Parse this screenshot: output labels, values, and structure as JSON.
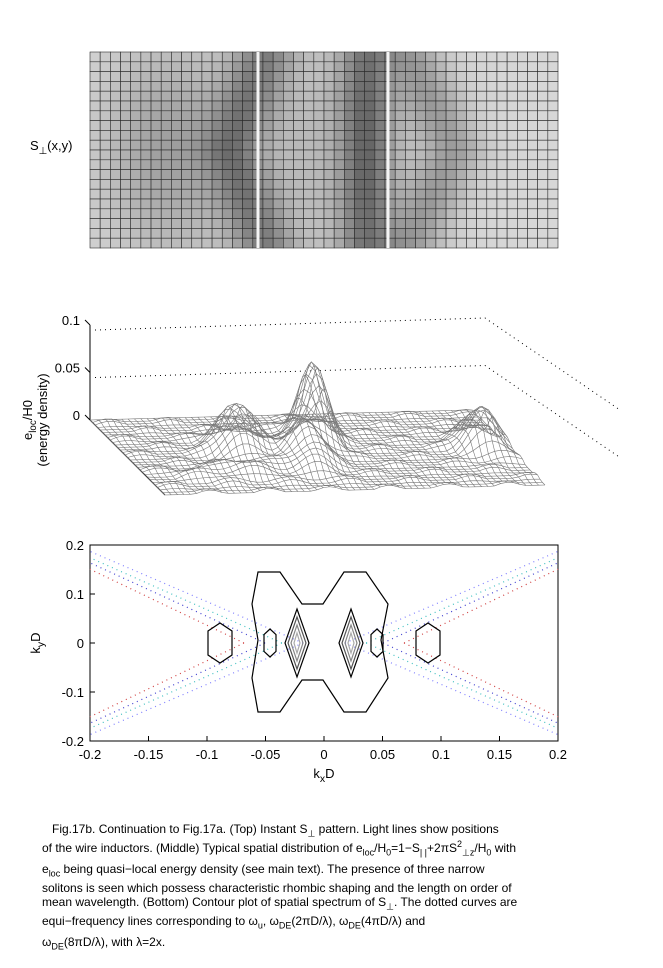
{
  "chart_data": [
    {
      "type": "heatmap",
      "ylabel": [
        "S",
        {
          "sub": "⊥"
        },
        "(x,y)"
      ]
    },
    {
      "type": "surface",
      "ylabel": [
        "e",
        {
          "sub": "loc"
        },
        "/H0"
      ],
      "ylabel2": "(energy density)",
      "zlim": [
        0,
        0.1
      ],
      "zticks": [
        0,
        0.05,
        0.1
      ]
    },
    {
      "type": "contour",
      "xlabel": [
        "k",
        {
          "sub": "x"
        },
        "D"
      ],
      "ylabel": [
        "k",
        {
          "sub": "y"
        },
        "D"
      ],
      "xlim": [
        -0.2,
        0.2
      ],
      "ylim": [
        -0.2,
        0.2
      ],
      "xticks": [
        -0.2,
        -0.15,
        -0.1,
        -0.05,
        0,
        0.05,
        0.1,
        0.15,
        0.2
      ],
      "yticks": [
        -0.2,
        -0.1,
        0,
        0.1,
        0.2
      ]
    }
  ],
  "caption": [
    [
      "Fig.17b.  Continuation to Fig.17a. (Top) Instant S",
      {
        "sub": "⊥"
      },
      " pattern. Light lines show positions"
    ],
    [
      "of the wire inductors. (Middle) Typical spatial distribution of e",
      {
        "sub": "loc"
      },
      "/H",
      {
        "sub": "0"
      },
      "=1−S",
      {
        "sub": "| |"
      },
      "+2πS",
      {
        "sup": "2"
      },
      {
        "sub": "⊥z"
      },
      "/H",
      {
        "sub": "0"
      },
      " with"
    ],
    [
      "e",
      {
        "sub": "loc"
      },
      " being quasi−local energy density (see main text). The presence of three narrow"
    ],
    [
      "solitons is seen which possess characteristic rhombic shaping and the length on order of"
    ],
    [
      "mean wavelength. (Bottom)  Contour plot of spatial spectrum of S",
      {
        "sub": "⊥"
      },
      ". The dotted curves are"
    ],
    [
      "equi−frequency lines corresponding to ω",
      {
        "sub": "u"
      },
      ", ω",
      {
        "sub": "DE"
      },
      "(2πD/λ), ω",
      {
        "sub": "DE"
      },
      "(4πD/λ) and"
    ],
    [
      "ω",
      {
        "sub": "DE"
      },
      "(8πD/λ), with λ=2x."
    ]
  ]
}
